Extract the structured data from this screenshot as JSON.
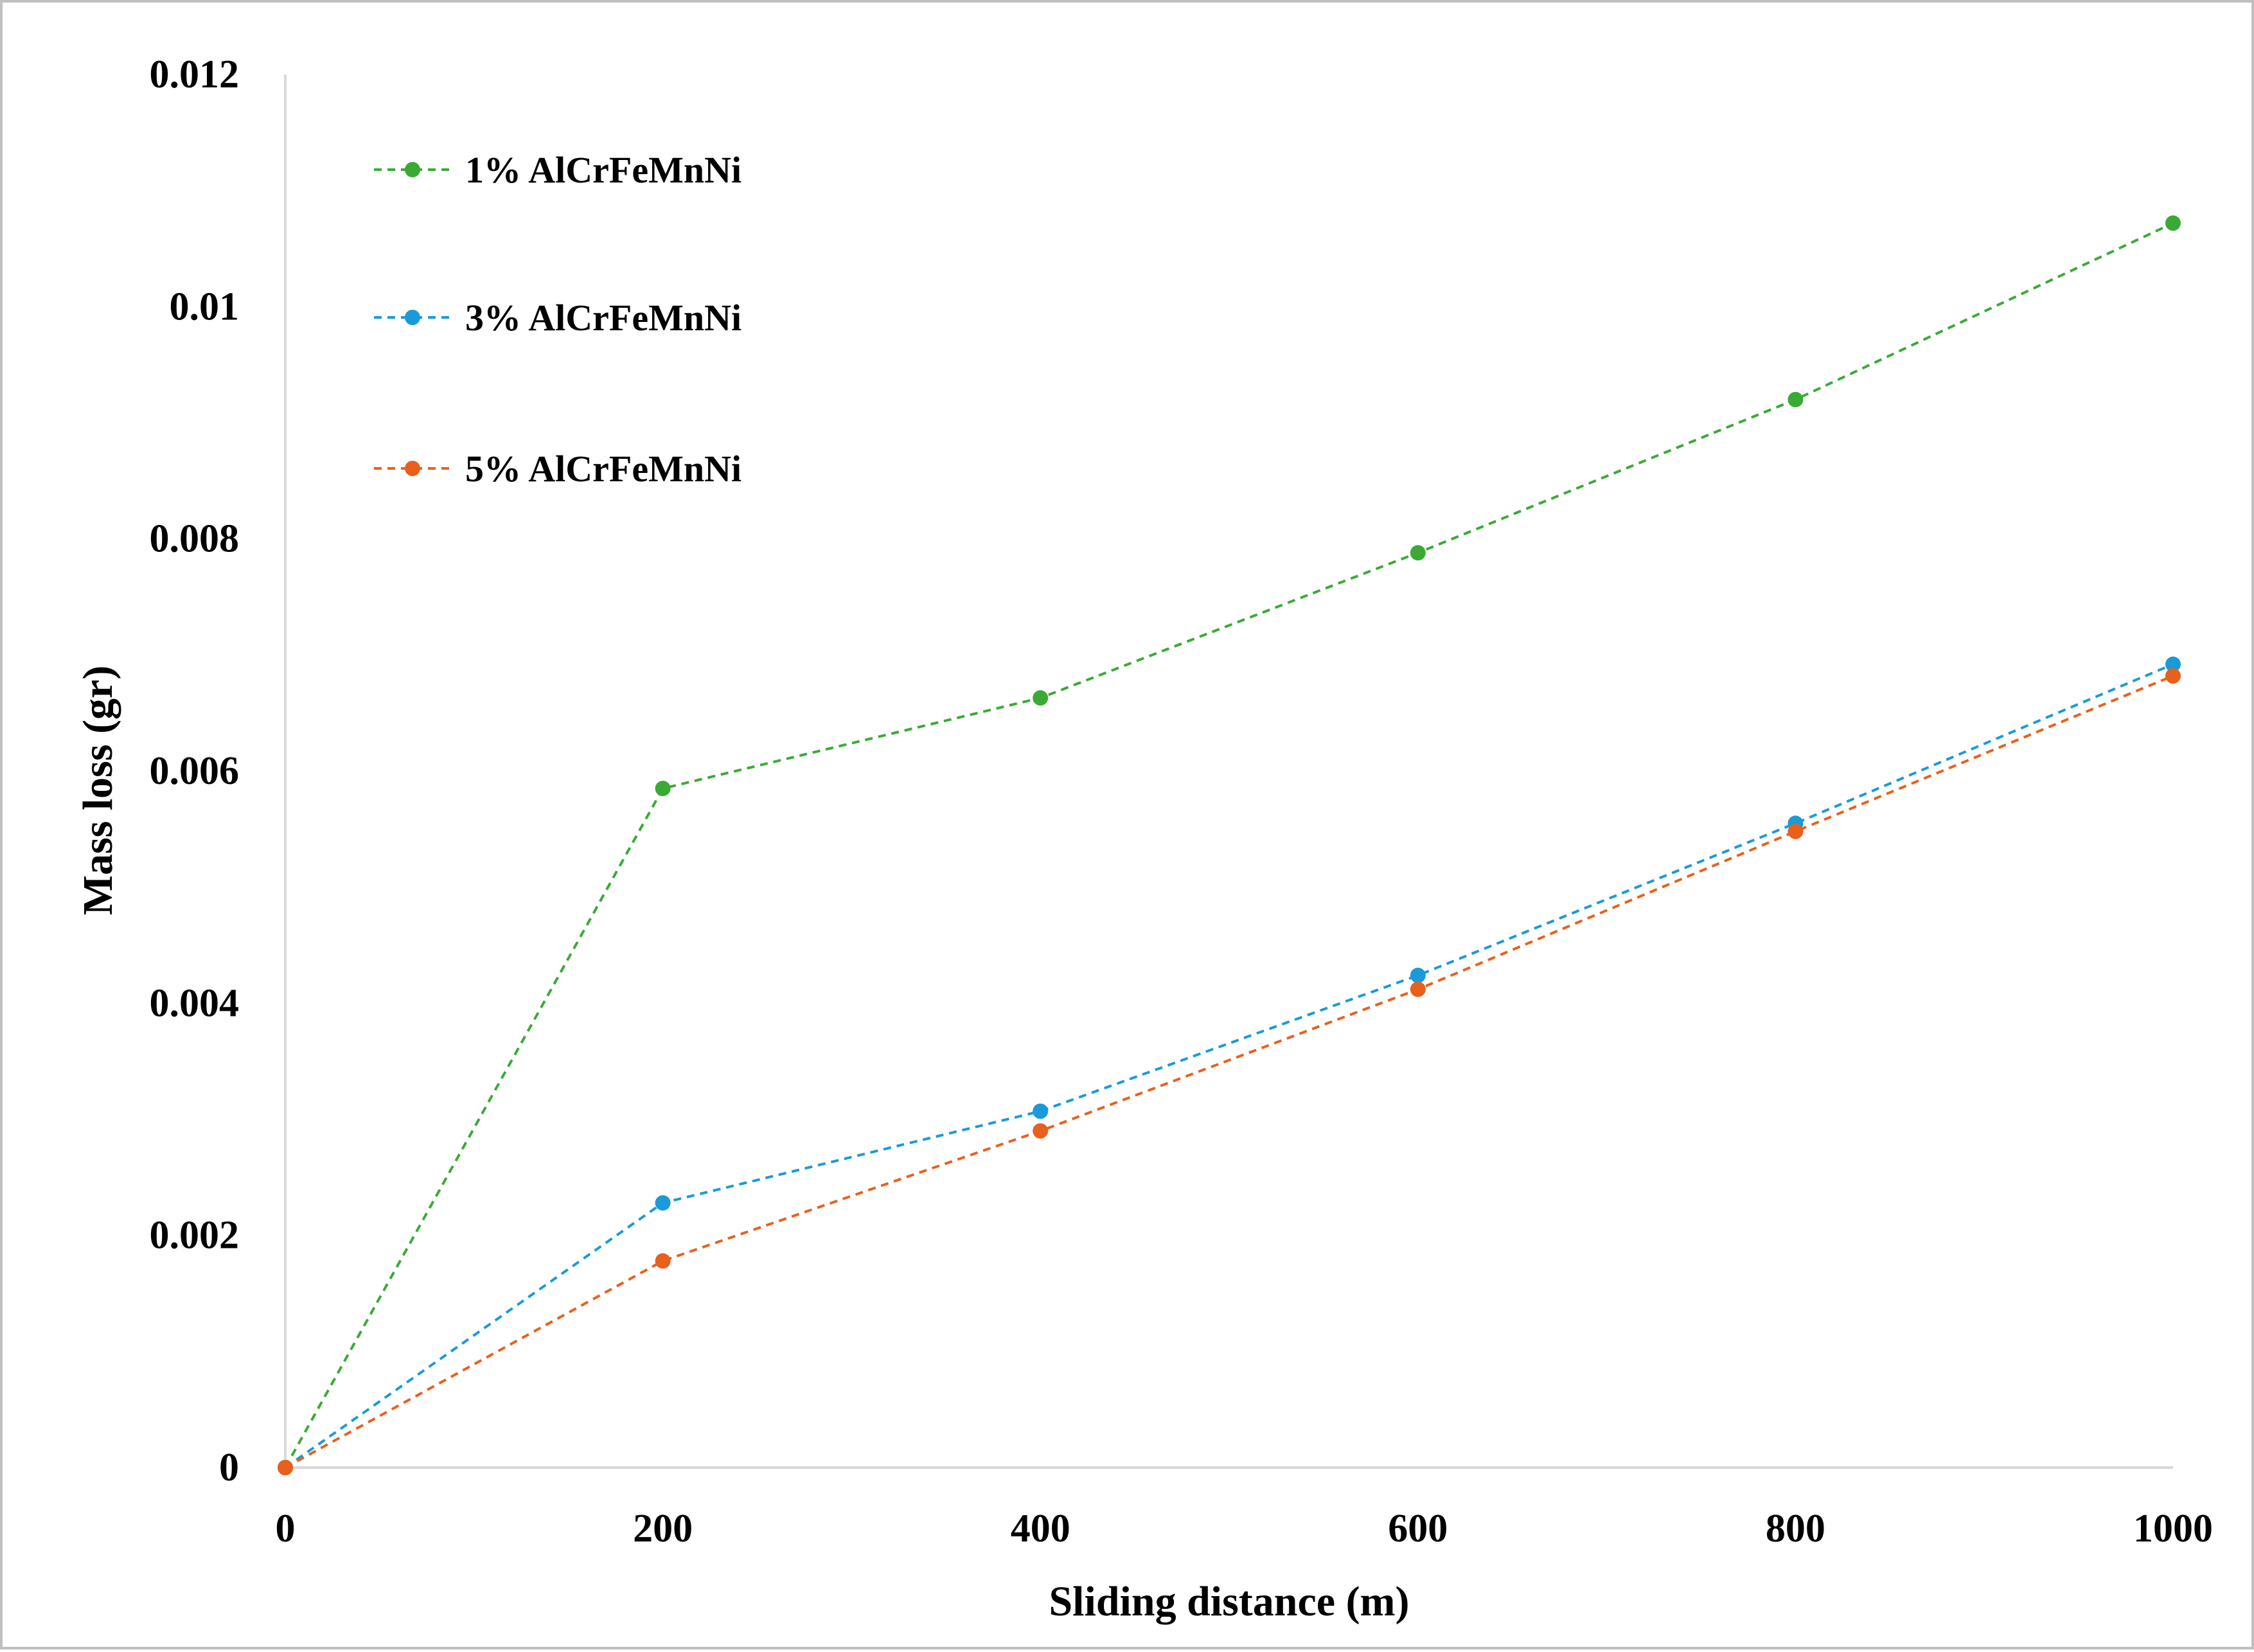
{
  "chart_data": {
    "type": "line",
    "xlabel": "Sliding distance (m)",
    "ylabel": "Mass loss (gr)",
    "x": [
      0,
      200,
      400,
      600,
      800,
      1000
    ],
    "x_ticks": [
      "0",
      "200",
      "400",
      "600",
      "800",
      "1000"
    ],
    "y_ticks": [
      "0",
      "0.002",
      "0.004",
      "0.006",
      "0.008",
      "0.01",
      "0.012"
    ],
    "y_tick_values": [
      0,
      0.002,
      0.004,
      0.006,
      0.008,
      0.01,
      0.012
    ],
    "xlim": [
      0,
      1000
    ],
    "ylim": [
      0,
      0.012
    ],
    "grid": false,
    "legend_position": "top-left",
    "line_style": "dashed",
    "series": [
      {
        "name": "1% AlCrFeMnNi",
        "color": "#3aaa35",
        "values": [
          0,
          0.00585,
          0.00663,
          0.00788,
          0.0092,
          0.01072
        ]
      },
      {
        "name": "3% AlCrFeMnNi",
        "color": "#1a9ad8",
        "values": [
          0,
          0.00228,
          0.00307,
          0.00424,
          0.00555,
          0.00692
        ]
      },
      {
        "name": "5% AlCrFeMnNi",
        "color": "#e8601c",
        "values": [
          0,
          0.00178,
          0.0029,
          0.00412,
          0.00548,
          0.00682
        ]
      }
    ]
  }
}
